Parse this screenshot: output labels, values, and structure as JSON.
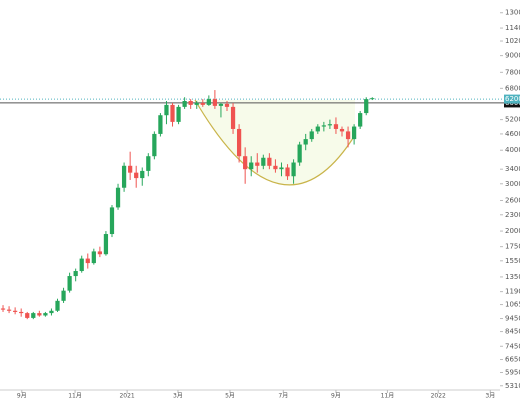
{
  "chart_data": {
    "type": "candlestick",
    "log_y": true,
    "xlim": [
      0,
      82.6
    ],
    "ylim": [
      470000,
      14500000
    ],
    "xticks": [
      {
        "value": 3.6,
        "label": "9月"
      },
      {
        "value": 12.4,
        "label": "11月"
      },
      {
        "value": 21.0,
        "label": "2021"
      },
      {
        "value": 29.4,
        "label": "3月"
      },
      {
        "value": 38.0,
        "label": "5月"
      },
      {
        "value": 46.8,
        "label": "7月"
      },
      {
        "value": 55.5,
        "label": "9月"
      },
      {
        "value": 64.0,
        "label": "11月"
      },
      {
        "value": 72.4,
        "label": "2022"
      },
      {
        "value": 81.0,
        "label": "3月"
      }
    ],
    "yticks": [
      13000000,
      11400000,
      10200000,
      9000000,
      7800000,
      6800000,
      5200000,
      4600000,
      4000000,
      3400000,
      3000000,
      2600000,
      2300000,
      2000000,
      1750000,
      1550000,
      1350000,
      1190000,
      1065000,
      945000,
      845000,
      745000,
      665000,
      595000,
      531000
    ],
    "current_price": 6200000,
    "resistance": 6000000,
    "up_color": "#26a65b",
    "down_color": "#ef5350",
    "x": [
      0.5,
      1.5,
      2.5,
      3.5,
      4.5,
      5.5,
      6.5,
      7.5,
      8.5,
      9.5,
      10.5,
      11.5,
      12.5,
      13.5,
      14.5,
      15.5,
      16.5,
      17.5,
      18.5,
      19.5,
      20.5,
      21.5,
      22.5,
      23.5,
      24.5,
      25.5,
      26.5,
      27.5,
      28.5,
      29.5,
      30.5,
      31.5,
      32.5,
      33.5,
      34.5,
      35.5,
      36.5,
      37.5,
      38.5,
      39.5,
      40.5,
      41.5,
      42.5,
      43.5,
      44.5,
      45.5,
      46.5,
      47.5,
      48.5,
      49.5,
      50.5,
      51.5,
      52.5,
      53.5,
      54.5,
      55.5,
      56.5,
      57.5,
      58.5,
      59.5,
      60.5,
      61.5
    ],
    "open": [
      1030000,
      1020000,
      1010000,
      1000000,
      990000,
      950000,
      990000,
      970000,
      990000,
      1010000,
      1100000,
      1200000,
      1360000,
      1420000,
      1580000,
      1520000,
      1680000,
      1640000,
      1950000,
      2450000,
      2900000,
      3500000,
      3300000,
      3150000,
      3350000,
      3800000,
      4600000,
      5400000,
      5900000,
      5100000,
      5800000,
      6100000,
      5900000,
      6000000,
      5900000,
      6200000,
      5850000,
      5950000,
      5800000,
      4800000,
      3800000,
      3400000,
      3600000,
      3500000,
      3750000,
      3500000,
      3400000,
      3450000,
      3200000,
      3600000,
      4200000,
      4400000,
      4700000,
      4900000,
      4950000,
      5000000,
      4800000,
      4700000,
      4400000,
      4900000,
      5500000,
      6200000
    ],
    "high": [
      1060000,
      1050000,
      1040000,
      1030000,
      1000000,
      1000000,
      1010000,
      1000000,
      1030000,
      1120000,
      1230000,
      1400000,
      1450000,
      1620000,
      1650000,
      1720000,
      1750000,
      2000000,
      2500000,
      3000000,
      3600000,
      3950000,
      3500000,
      3450000,
      3900000,
      4700000,
      5500000,
      6100000,
      6000000,
      5900000,
      6300000,
      6200000,
      6100000,
      6200000,
      6400000,
      6700000,
      6000000,
      6100000,
      6000000,
      5000000,
      4100000,
      3800000,
      3900000,
      3850000,
      3900000,
      3700000,
      3600000,
      3550000,
      3700000,
      4300000,
      4600000,
      4800000,
      5000000,
      5100000,
      5200000,
      5300000,
      4900000,
      4900000,
      5000000,
      5600000,
      6300000,
      6300000
    ],
    "low": [
      1000000,
      990000,
      980000,
      960000,
      940000,
      940000,
      960000,
      960000,
      970000,
      1000000,
      1080000,
      1180000,
      1300000,
      1400000,
      1450000,
      1500000,
      1600000,
      1620000,
      1900000,
      2400000,
      2800000,
      3100000,
      2900000,
      2950000,
      3200000,
      3700000,
      4500000,
      5000000,
      4900000,
      5000000,
      5700000,
      5700000,
      5700000,
      5800000,
      5850000,
      5700000,
      5300000,
      5600000,
      4600000,
      3600000,
      3000000,
      3200000,
      3300000,
      3400000,
      3400000,
      3300000,
      3200000,
      3100000,
      3000000,
      3500000,
      4000000,
      4300000,
      4600000,
      4700000,
      4800000,
      4600000,
      4500000,
      4100000,
      4200000,
      4800000,
      5400000,
      6150000
    ],
    "close": [
      1020000,
      1010000,
      1000000,
      990000,
      950000,
      990000,
      970000,
      990000,
      1010000,
      1100000,
      1200000,
      1360000,
      1420000,
      1580000,
      1520000,
      1680000,
      1640000,
      1950000,
      2450000,
      2900000,
      3500000,
      3300000,
      3150000,
      3350000,
      3800000,
      4600000,
      5400000,
      5900000,
      5100000,
      5800000,
      6100000,
      5900000,
      6000000,
      5900000,
      6200000,
      5850000,
      5950000,
      5800000,
      4800000,
      3800000,
      3400000,
      3600000,
      3500000,
      3750000,
      3500000,
      3400000,
      3450000,
      3200000,
      3600000,
      4200000,
      4400000,
      4700000,
      4900000,
      4950000,
      5000000,
      4800000,
      4700000,
      4400000,
      4900000,
      5500000,
      6200000,
      6250000
    ]
  }
}
